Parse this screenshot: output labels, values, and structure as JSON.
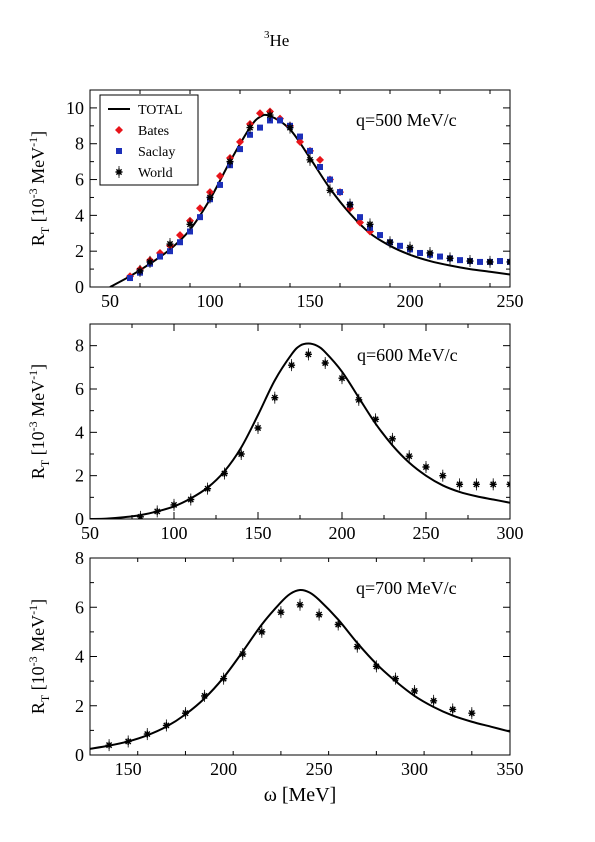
{
  "figure": {
    "title_sup": "3",
    "title_main": "He"
  },
  "styles": {
    "total_color": "#000000",
    "bates_color": "#e8141a",
    "saclay_color": "#1c2fb8",
    "world_color": "#000000"
  },
  "chart_data": [
    {
      "type": "line",
      "annotation": "q=500 MeV/c",
      "ylabel_main": "R",
      "ylabel_sub": "T",
      "ylabel_unit_pre": " [10",
      "ylabel_unit_sup1": "-3",
      "ylabel_unit_mid": " MeV",
      "ylabel_unit_sup2": "-1",
      "ylabel_unit_post": "]",
      "xlim": [
        40,
        250
      ],
      "ylim": [
        0,
        11
      ],
      "xticks": [
        50,
        100,
        150,
        200,
        250
      ],
      "yticks": [
        0,
        2,
        4,
        6,
        8,
        10
      ],
      "legend": {
        "placement": "top-left",
        "entries": [
          "TOTAL",
          "Bates",
          "Saclay",
          "World"
        ]
      },
      "series": [
        {
          "name": "TOTAL",
          "kind": "line",
          "x": [
            50,
            60,
            70,
            80,
            90,
            100,
            110,
            120,
            125,
            130,
            140,
            150,
            160,
            170,
            180,
            190,
            200,
            210,
            220,
            230,
            240,
            250
          ],
          "y": [
            0.0,
            0.6,
            1.3,
            2.1,
            3.2,
            4.9,
            7.0,
            8.9,
            9.5,
            9.55,
            8.8,
            7.2,
            5.5,
            4.1,
            3.0,
            2.3,
            1.8,
            1.45,
            1.2,
            1.0,
            0.85,
            0.7
          ]
        },
        {
          "name": "Bates",
          "kind": "points",
          "x": [
            60,
            65,
            70,
            75,
            80,
            85,
            90,
            95,
            100,
            105,
            110,
            115,
            120,
            125,
            130,
            135,
            140,
            145,
            150,
            155,
            160,
            165,
            170,
            175,
            180
          ],
          "y": [
            0.6,
            1.0,
            1.5,
            1.9,
            2.3,
            2.9,
            3.7,
            4.4,
            5.3,
            6.2,
            7.2,
            8.1,
            9.1,
            9.7,
            9.8,
            9.4,
            9.0,
            8.1,
            7.6,
            7.1,
            6.0,
            5.3,
            4.4,
            3.6,
            3.1
          ]
        },
        {
          "name": "Saclay",
          "kind": "points",
          "x": [
            60,
            65,
            70,
            75,
            80,
            85,
            90,
            95,
            100,
            105,
            110,
            115,
            120,
            125,
            130,
            135,
            140,
            145,
            150,
            155,
            160,
            165,
            170,
            175,
            180,
            185,
            190,
            195,
            200,
            205,
            210,
            215,
            220,
            225,
            230,
            235,
            240,
            245,
            250
          ],
          "y": [
            0.5,
            0.8,
            1.3,
            1.7,
            2.0,
            2.5,
            3.1,
            3.9,
            4.9,
            5.7,
            6.8,
            7.7,
            8.5,
            8.9,
            9.3,
            9.3,
            9.0,
            8.4,
            7.6,
            6.7,
            6.0,
            5.3,
            4.6,
            3.9,
            3.3,
            2.9,
            2.5,
            2.3,
            2.1,
            1.9,
            1.8,
            1.7,
            1.6,
            1.5,
            1.45,
            1.4,
            1.4,
            1.45,
            1.4
          ]
        },
        {
          "name": "World",
          "kind": "points",
          "x": [
            65,
            70,
            80,
            90,
            100,
            110,
            120,
            130,
            140,
            150,
            160,
            170,
            180,
            190,
            200,
            210,
            220,
            230,
            240,
            250
          ],
          "y": [
            0.9,
            1.4,
            2.4,
            3.5,
            5.0,
            7.0,
            8.9,
            9.6,
            8.9,
            7.1,
            5.4,
            4.6,
            3.5,
            2.5,
            2.2,
            1.9,
            1.6,
            1.45,
            1.4,
            1.4
          ]
        }
      ]
    },
    {
      "type": "line",
      "annotation": "q=600 MeV/c",
      "ylabel_main": "R",
      "ylabel_sub": "T",
      "ylabel_unit_pre": " [10",
      "ylabel_unit_sup1": "-3",
      "ylabel_unit_mid": " MeV",
      "ylabel_unit_sup2": "-1",
      "ylabel_unit_post": "]",
      "xlim": [
        50,
        300
      ],
      "ylim": [
        0,
        9
      ],
      "xticks": [
        50,
        100,
        150,
        200,
        250,
        300
      ],
      "yticks": [
        0,
        2,
        4,
        6,
        8
      ],
      "series": [
        {
          "name": "TOTAL",
          "kind": "line",
          "x": [
            50,
            60,
            70,
            80,
            90,
            100,
            110,
            120,
            130,
            140,
            150,
            160,
            170,
            175,
            180,
            185,
            190,
            200,
            210,
            220,
            230,
            240,
            250,
            260,
            270,
            280,
            290,
            300
          ],
          "y": [
            0.0,
            0.02,
            0.08,
            0.18,
            0.35,
            0.58,
            0.95,
            1.45,
            2.2,
            3.3,
            4.8,
            6.4,
            7.6,
            8.0,
            8.1,
            8.0,
            7.7,
            6.8,
            5.6,
            4.4,
            3.4,
            2.6,
            2.0,
            1.55,
            1.25,
            1.05,
            0.9,
            0.75
          ]
        },
        {
          "name": "World",
          "kind": "points",
          "x": [
            80,
            90,
            100,
            110,
            120,
            130,
            140,
            150,
            160,
            170,
            180,
            190,
            200,
            210,
            220,
            230,
            240,
            250,
            260,
            270,
            280,
            290,
            300
          ],
          "y": [
            0.1,
            0.35,
            0.65,
            0.9,
            1.4,
            2.1,
            3.0,
            4.2,
            5.6,
            7.1,
            7.6,
            7.2,
            6.5,
            5.5,
            4.6,
            3.7,
            2.9,
            2.4,
            2.0,
            1.6,
            1.6,
            1.6,
            1.6
          ]
        }
      ]
    },
    {
      "type": "line",
      "annotation": "q=700 MeV/c",
      "xlabel": "ω [MeV]",
      "ylabel_main": "R",
      "ylabel_sub": "T",
      "ylabel_unit_pre": " [10",
      "ylabel_unit_sup1": "-3",
      "ylabel_unit_mid": " MeV",
      "ylabel_unit_sup2": "-1",
      "ylabel_unit_post": "]",
      "xlim": [
        130,
        350
      ],
      "ylim": [
        0,
        8
      ],
      "xticks": [
        150,
        200,
        250,
        300,
        350
      ],
      "yticks": [
        0,
        2,
        4,
        6,
        8
      ],
      "series": [
        {
          "name": "TOTAL",
          "kind": "line",
          "x": [
            130,
            140,
            150,
            160,
            170,
            180,
            190,
            200,
            210,
            220,
            230,
            235,
            240,
            245,
            250,
            260,
            270,
            280,
            290,
            300,
            310,
            320,
            330,
            340,
            350
          ],
          "y": [
            0.25,
            0.38,
            0.55,
            0.8,
            1.15,
            1.65,
            2.3,
            3.15,
            4.2,
            5.3,
            6.2,
            6.55,
            6.7,
            6.6,
            6.3,
            5.5,
            4.55,
            3.7,
            3.0,
            2.4,
            1.95,
            1.6,
            1.35,
            1.15,
            0.95
          ]
        },
        {
          "name": "World",
          "kind": "points",
          "x": [
            140,
            150,
            160,
            170,
            180,
            190,
            200,
            210,
            220,
            230,
            240,
            250,
            260,
            270,
            280,
            290,
            300,
            310,
            320,
            330
          ],
          "y": [
            0.4,
            0.55,
            0.85,
            1.2,
            1.7,
            2.4,
            3.1,
            4.1,
            5.0,
            5.8,
            6.1,
            5.7,
            5.3,
            4.4,
            3.6,
            3.1,
            2.6,
            2.2,
            1.85,
            1.7
          ]
        }
      ]
    }
  ]
}
